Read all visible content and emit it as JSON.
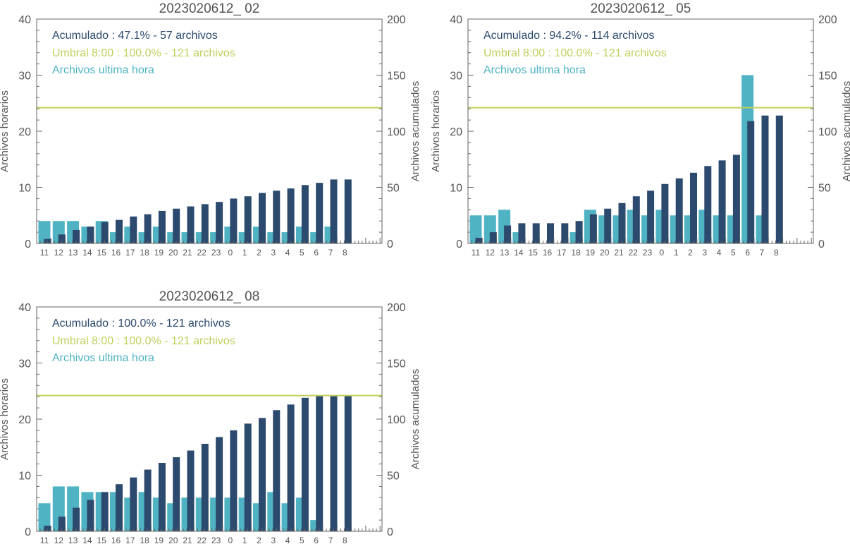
{
  "colors": {
    "cumulative": "#2c4a6e",
    "hourly": "#4fb3c3",
    "threshold": "#c2cf5c",
    "axis": "#666666",
    "text": "#555555"
  },
  "chart_data": [
    {
      "type": "bar",
      "title": "2023020612_ 02",
      "ylabel_left": "Archivos horarios",
      "ylabel_right": "Archivos acumulados",
      "ylim_left": [
        0,
        40
      ],
      "ylim_right": [
        0,
        200
      ],
      "yticks_left": [
        "0",
        "10",
        "20",
        "30",
        "40"
      ],
      "yticks_right": [
        "0",
        "50",
        "100",
        "150",
        "200"
      ],
      "categories": [
        "11",
        "12",
        "13",
        "14",
        "15",
        "16",
        "17",
        "18",
        "19",
        "20",
        "21",
        "22",
        "23",
        "0",
        "1",
        "2",
        "3",
        "4",
        "5",
        "6",
        "7",
        "8"
      ],
      "legend": {
        "cumulative": "Acumulado : 47.1% - 57 archivos",
        "threshold": "Umbral 8:00 : 100.0% - 121 archivos",
        "hourly": "Archivos ultima hora"
      },
      "threshold": 121,
      "series": [
        {
          "name": "Archivos ultima hora",
          "axis": "left",
          "values": [
            4,
            4,
            4,
            3,
            4,
            2,
            3,
            2,
            3,
            2,
            2,
            2,
            2,
            3,
            2,
            3,
            2,
            2,
            3,
            2,
            3,
            null
          ]
        },
        {
          "name": "Acumulado",
          "axis": "right",
          "values": [
            4,
            8,
            12,
            15,
            19,
            21,
            24,
            26,
            29,
            31,
            33,
            35,
            37,
            40,
            42,
            45,
            47,
            49,
            52,
            54,
            57,
            57
          ]
        }
      ]
    },
    {
      "type": "bar",
      "title": "2023020612_ 05",
      "ylabel_left": "Archivos horarios",
      "ylabel_right": "Archivos acumulados",
      "ylim_left": [
        0,
        40
      ],
      "ylim_right": [
        0,
        200
      ],
      "yticks_left": [
        "0",
        "10",
        "20",
        "30",
        "40"
      ],
      "yticks_right": [
        "0",
        "50",
        "100",
        "150",
        "200"
      ],
      "categories": [
        "11",
        "12",
        "13",
        "14",
        "15",
        "16",
        "17",
        "18",
        "19",
        "20",
        "21",
        "22",
        "23",
        "0",
        "1",
        "2",
        "3",
        "4",
        "5",
        "6",
        "7",
        "8"
      ],
      "legend": {
        "cumulative": "Acumulado : 94.2% - 114 archivos",
        "threshold": "Umbral 8:00 : 100.0% - 121 archivos",
        "hourly": "Archivos ultima hora"
      },
      "threshold": 121,
      "series": [
        {
          "name": "Archivos ultima hora",
          "axis": "left",
          "values": [
            5,
            5,
            6,
            2,
            null,
            null,
            null,
            2,
            6,
            5,
            5,
            6,
            5,
            6,
            5,
            5,
            6,
            5,
            5,
            30,
            5,
            null
          ]
        },
        {
          "name": "Acumulado",
          "axis": "right",
          "values": [
            5,
            10,
            16,
            18,
            18,
            18,
            18,
            20,
            26,
            31,
            36,
            42,
            47,
            53,
            58,
            63,
            69,
            74,
            79,
            109,
            114,
            114
          ]
        }
      ]
    },
    {
      "type": "bar",
      "title": "2023020612_ 08",
      "ylabel_left": "Archivos horarios",
      "ylabel_right": "Archivos acumulados",
      "ylim_left": [
        0,
        40
      ],
      "ylim_right": [
        0,
        200
      ],
      "yticks_left": [
        "0",
        "10",
        "20",
        "30",
        "40"
      ],
      "yticks_right": [
        "0",
        "50",
        "100",
        "150",
        "200"
      ],
      "categories": [
        "11",
        "12",
        "13",
        "14",
        "15",
        "16",
        "17",
        "18",
        "19",
        "20",
        "21",
        "22",
        "23",
        "0",
        "1",
        "2",
        "3",
        "4",
        "5",
        "6",
        "7",
        "8"
      ],
      "legend": {
        "cumulative": "Acumulado : 100.0% - 121 archivos",
        "threshold": "Umbral 8:00 : 100.0% - 121 archivos",
        "hourly": "Archivos ultima hora"
      },
      "threshold": 121,
      "series": [
        {
          "name": "Archivos ultima hora",
          "axis": "left",
          "values": [
            5,
            8,
            8,
            7,
            7,
            7,
            6,
            7,
            6,
            5,
            6,
            6,
            6,
            6,
            6,
            5,
            7,
            5,
            6,
            2,
            null,
            null
          ]
        },
        {
          "name": "Acumulado",
          "axis": "right",
          "values": [
            5,
            13,
            21,
            28,
            35,
            42,
            48,
            55,
            61,
            66,
            72,
            78,
            84,
            90,
            96,
            101,
            108,
            113,
            119,
            121,
            121,
            121
          ]
        }
      ]
    }
  ]
}
